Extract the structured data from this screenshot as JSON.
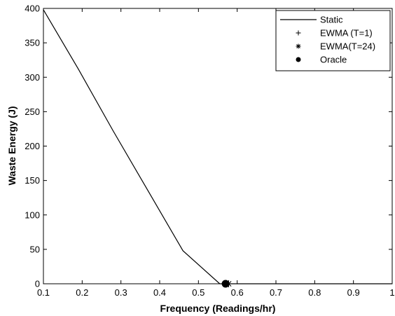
{
  "chart_data": {
    "type": "line",
    "title": "",
    "xlabel": "Frequency (Readings/hr)",
    "ylabel": "Waste Energy (J)",
    "xlim": [
      0.1,
      1.0
    ],
    "ylim": [
      0,
      400
    ],
    "xticks": [
      "0.1",
      "0.2",
      "0.3",
      "0.4",
      "0.5",
      "0.6",
      "0.7",
      "0.8",
      "0.9",
      "1"
    ],
    "yticks": [
      "0",
      "50",
      "100",
      "150",
      "200",
      "250",
      "300",
      "350",
      "400"
    ],
    "grid": false,
    "legend_position": "top-right",
    "series": [
      {
        "name": "Static",
        "marker": "line",
        "x": [
          0.1,
          0.19,
          0.28,
          0.37,
          0.46,
          0.555,
          0.6,
          0.7,
          0.8,
          0.9,
          1.0
        ],
        "y": [
          398,
          312,
          222,
          135,
          48,
          0,
          0,
          0,
          0,
          0,
          0
        ]
      },
      {
        "name": "EWMA (T=1)",
        "marker": "plus",
        "x": [
          0.573
        ],
        "y": [
          0
        ]
      },
      {
        "name": "EWMA(T=24)",
        "marker": "asterisk",
        "x": [
          0.578
        ],
        "y": [
          0
        ]
      },
      {
        "name": "Oracle",
        "marker": "dot",
        "x": [
          0.57
        ],
        "y": [
          0
        ]
      }
    ]
  }
}
